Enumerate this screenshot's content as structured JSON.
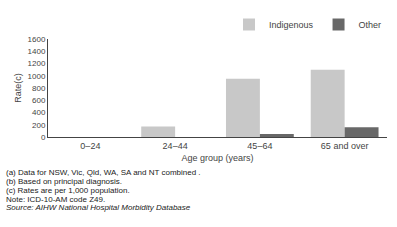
{
  "chart_data": {
    "type": "bar",
    "categories": [
      "0–24",
      "24–44",
      "45–64",
      "65 and over"
    ],
    "series": [
      {
        "name": "Indigenous",
        "color": "#c8c8c8",
        "values": [
          0,
          170,
          950,
          1100
        ]
      },
      {
        "name": "Other",
        "color": "#686868",
        "values": [
          0,
          0,
          50,
          160
        ]
      }
    ],
    "xlabel": "Age group (years)",
    "ylabel": "Rate(c)",
    "ylim": [
      0,
      1600
    ],
    "yticks": [
      0,
      200,
      400,
      600,
      800,
      1000,
      1200,
      1400,
      1600
    ],
    "grid": false,
    "legend": "upper right",
    "annotations": [
      "(a) Data for NSW, Vic, Qld, WA, SA and NT combined .",
      "(b) Based on principal diagnosis.",
      "(c) Rates are per 1,000 population.",
      "Note: ICD-10-AM code Z49.",
      "Source: AIHW National Hospital Morbidity Database"
    ]
  }
}
